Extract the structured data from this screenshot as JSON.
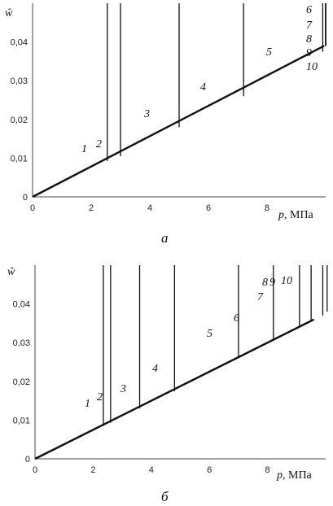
{
  "chart_data": [
    {
      "type": "line",
      "caption": "а",
      "ylabel": "ŵ",
      "xlabel_var": "p",
      "xlabel_unit": ", МПа",
      "xlim": [
        0,
        10
      ],
      "ylim": [
        0,
        0.05
      ],
      "x_ticks": [
        "0",
        "2",
        "4",
        "6",
        "8"
      ],
      "y_ticks": [
        "0",
        "0,01",
        "0,02",
        "0,03",
        "0,04"
      ],
      "x_tick_values": [
        0,
        2,
        4,
        6,
        8
      ],
      "y_tick_values": [
        0,
        0.01,
        0.02,
        0.03,
        0.04
      ],
      "base_line": {
        "x": [
          0,
          9.95
        ],
        "y": [
          0,
          0.039
        ]
      },
      "series": [
        {
          "label": "1",
          "x": 2.55,
          "w": 0.0093
        },
        {
          "label": "2",
          "x": 3.0,
          "w": 0.0105
        },
        {
          "label": "3",
          "x": 5.0,
          "w": 0.018
        },
        {
          "label": "4",
          "x": 7.2,
          "w": 0.026
        },
        {
          "label": "5",
          "x": 9.9,
          "w": 0.0375
        },
        {
          "label": "6",
          "x": 10.0,
          "w": 0.039
        },
        {
          "label": "7",
          "x": 10.0,
          "w": 0.039
        },
        {
          "label": "8",
          "x": 10.0,
          "w": 0.039
        },
        {
          "label": "9",
          "x": 10.0,
          "w": 0.039
        },
        {
          "label": "10",
          "x": 10.0,
          "w": 0.039
        }
      ]
    },
    {
      "type": "line",
      "caption": "б",
      "ylabel": "ŵ",
      "xlabel_var": "p",
      "xlabel_unit": ", МПа",
      "xlim": [
        0,
        10
      ],
      "ylim": [
        0,
        0.05
      ],
      "x_ticks": [
        "0",
        "2",
        "4",
        "6",
        "8"
      ],
      "y_ticks": [
        "0",
        "0,01",
        "0,02",
        "0,03",
        "0,04"
      ],
      "x_tick_values": [
        0,
        2,
        4,
        6,
        8
      ],
      "y_tick_values": [
        0,
        0.01,
        0.02,
        0.03,
        0.04
      ],
      "base_line": {
        "x": [
          0,
          9.6
        ],
        "y": [
          0,
          0.036
        ]
      },
      "series": [
        {
          "label": "1",
          "x": 2.35,
          "w": 0.0085
        },
        {
          "label": "2",
          "x": 2.6,
          "w": 0.0093
        },
        {
          "label": "3",
          "x": 3.6,
          "w": 0.013
        },
        {
          "label": "4",
          "x": 4.8,
          "w": 0.0175
        },
        {
          "label": "5",
          "x": 7.0,
          "w": 0.026
        },
        {
          "label": "6",
          "x": 8.2,
          "w": 0.0305
        },
        {
          "label": "7",
          "x": 9.1,
          "w": 0.034
        },
        {
          "label": "8",
          "x": 9.5,
          "w": 0.0355
        },
        {
          "label": "9",
          "x": 9.9,
          "w": 0.037
        },
        {
          "label": "10",
          "x": 10.05,
          "w": 0.038
        }
      ]
    }
  ]
}
